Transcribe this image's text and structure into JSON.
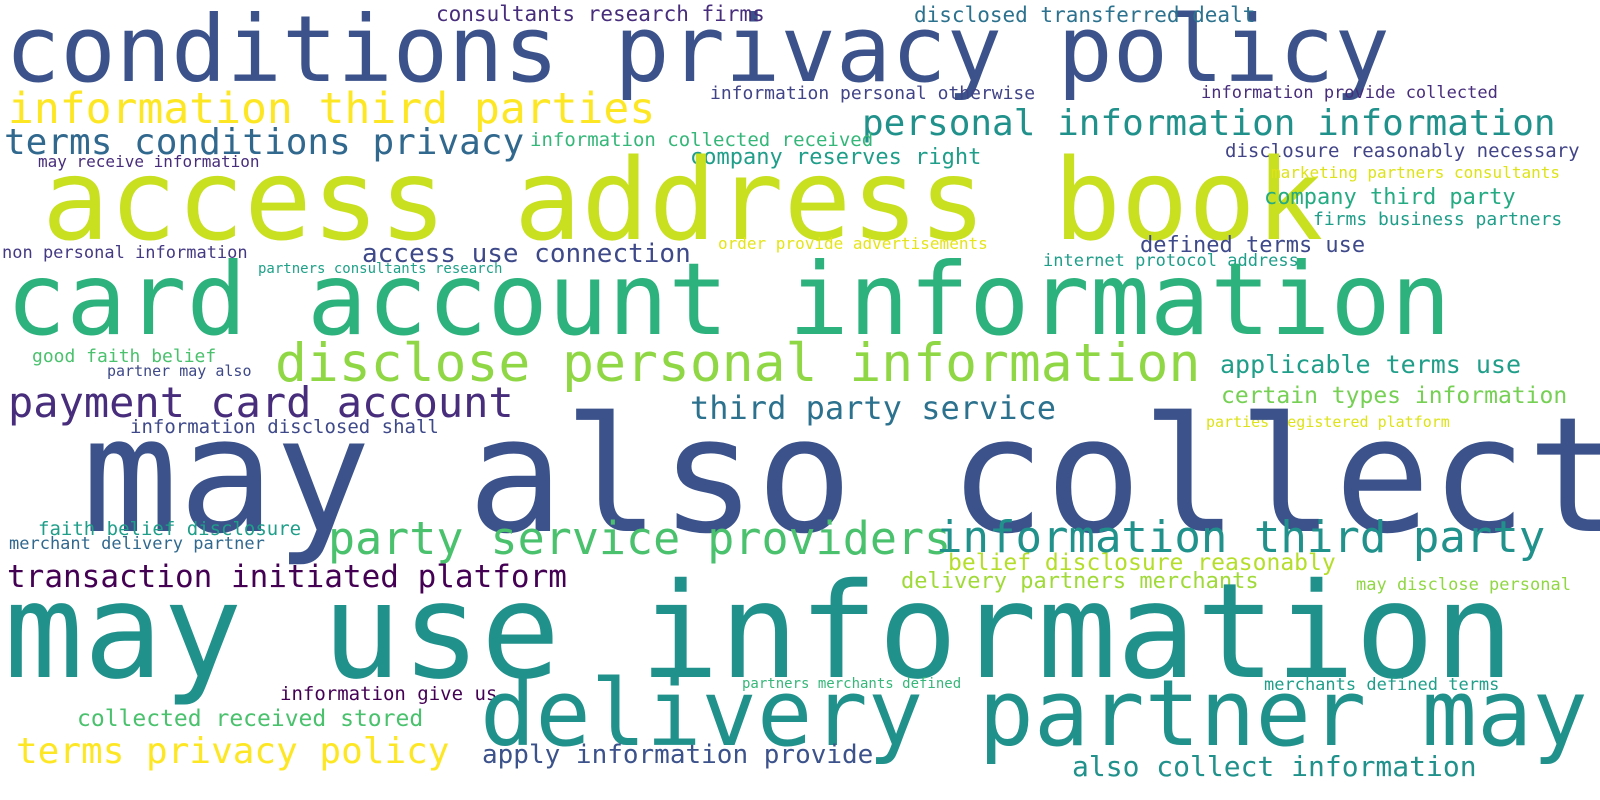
{
  "colors": {
    "background": "#ffffff",
    "navy": "#3b528b",
    "dark_purple": "#440154",
    "indigo": "#414487",
    "blue": "#31688e",
    "teal": "#21918c",
    "sea_green": "#1f9e89",
    "green": "#35b779",
    "lime": "#90d743",
    "yellow_green": "#c8e020",
    "yellow": "#fde725"
  },
  "words": [
    {
      "text": "conditions privacy policy",
      "color": "#3b528b"
    },
    {
      "text": "consultants research firms",
      "color": "#472d7b"
    },
    {
      "text": "disclosed transferred dealt",
      "color": "#2c728e"
    },
    {
      "text": "information third parties",
      "color": "#fde725"
    },
    {
      "text": "information personal otherwise",
      "color": "#414487"
    },
    {
      "text": "information provide collected",
      "color": "#472d7b"
    },
    {
      "text": "personal information information",
      "color": "#21918c"
    },
    {
      "text": "terms conditions privacy",
      "color": "#31688e"
    },
    {
      "text": "information collected received",
      "color": "#35b779"
    },
    {
      "text": "company reserves right",
      "color": "#1f9e89"
    },
    {
      "text": "disclosure reasonably necessary",
      "color": "#414487"
    },
    {
      "text": "may receive information",
      "color": "#472d7b"
    },
    {
      "text": "access address book",
      "color": "#c8e020"
    },
    {
      "text": "marketing partners consultants",
      "color": "#dde318"
    },
    {
      "text": "company third party",
      "color": "#25ab82"
    },
    {
      "text": "firms business partners",
      "color": "#1f9e89"
    },
    {
      "text": "non personal information",
      "color": "#443983"
    },
    {
      "text": "access use connection",
      "color": "#3e4989"
    },
    {
      "text": "order provide advertisements",
      "color": "#e5e419"
    },
    {
      "text": "defined terms use",
      "color": "#3e4989"
    },
    {
      "text": "partners consultants research",
      "color": "#1fa188"
    },
    {
      "text": "internet protocol address",
      "color": "#1f9e89"
    },
    {
      "text": "card account information",
      "color": "#2db27d"
    },
    {
      "text": "good faith belief",
      "color": "#4ac16d"
    },
    {
      "text": "disclose personal information",
      "color": "#8fd744"
    },
    {
      "text": "applicable terms use",
      "color": "#1f9e89"
    },
    {
      "text": "partner may also",
      "color": "#3e4989"
    },
    {
      "text": "payment card account",
      "color": "#472d7b"
    },
    {
      "text": "certain types information",
      "color": "#75d054"
    },
    {
      "text": "third party service",
      "color": "#2c728e"
    },
    {
      "text": "parties registered platform",
      "color": "#dde318"
    },
    {
      "text": "information disclosed shall",
      "color": "#3e4989"
    },
    {
      "text": "may also collect",
      "color": "#3b528b"
    },
    {
      "text": "faith belief disclosure",
      "color": "#1f9e89"
    },
    {
      "text": "party service providers",
      "color": "#4ac16d"
    },
    {
      "text": "information third party",
      "color": "#21918c"
    },
    {
      "text": "merchant delivery partner",
      "color": "#31688e"
    },
    {
      "text": "belief disclosure reasonably",
      "color": "#b5de2b"
    },
    {
      "text": "transaction initiated platform",
      "color": "#440154"
    },
    {
      "text": "delivery partners merchants",
      "color": "#a0da39"
    },
    {
      "text": "may disclose personal",
      "color": "#90d743"
    },
    {
      "text": "may use information",
      "color": "#21918c"
    },
    {
      "text": "partners merchants defined",
      "color": "#35b779"
    },
    {
      "text": "information give us",
      "color": "#440154"
    },
    {
      "text": "merchants defined terms",
      "color": "#1f9e89"
    },
    {
      "text": "delivery partner may",
      "color": "#21918c"
    },
    {
      "text": "collected received stored",
      "color": "#4ac16d"
    },
    {
      "text": "terms privacy policy",
      "color": "#fde725"
    },
    {
      "text": "apply information provide",
      "color": "#3b528b"
    },
    {
      "text": "also collect information",
      "color": "#21918c"
    }
  ]
}
